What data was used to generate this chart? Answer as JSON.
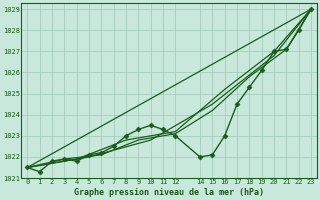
{
  "title": "Graphe pression niveau de la mer (hPa)",
  "background_color": "#c8e8dc",
  "grid_color": "#9ec8b8",
  "line_color": "#1a5c1a",
  "xlim": [
    -0.5,
    23.5
  ],
  "ylim": [
    1021.0,
    1029.3
  ],
  "yticks": [
    1021,
    1022,
    1023,
    1024,
    1025,
    1026,
    1027,
    1028,
    1029
  ],
  "xticks": [
    0,
    1,
    2,
    3,
    4,
    5,
    6,
    7,
    8,
    9,
    10,
    11,
    12,
    14,
    15,
    16,
    17,
    18,
    19,
    20,
    21,
    22,
    23
  ],
  "main_line": {
    "x": [
      0,
      1,
      2,
      3,
      4,
      5,
      6,
      7,
      8,
      9,
      10,
      11,
      12,
      14,
      15,
      16,
      17,
      18,
      19,
      20,
      21,
      22,
      23
    ],
    "y": [
      1021.5,
      1021.3,
      1021.8,
      1021.9,
      1021.8,
      1022.1,
      1022.2,
      1022.5,
      1023.0,
      1023.3,
      1023.5,
      1023.3,
      1023.0,
      1022.0,
      1022.1,
      1023.0,
      1024.5,
      1025.3,
      1026.1,
      1027.0,
      1027.1,
      1028.0,
      1029.0
    ]
  },
  "trend_lines": [
    {
      "x": [
        0,
        23
      ],
      "y": [
        1021.5,
        1029.0
      ]
    },
    {
      "x": [
        0,
        5,
        10,
        15,
        20,
        23
      ],
      "y": [
        1021.5,
        1022.0,
        1022.8,
        1024.5,
        1026.8,
        1029.0
      ]
    },
    {
      "x": [
        0,
        4,
        8,
        12,
        16,
        20,
        23
      ],
      "y": [
        1021.5,
        1021.9,
        1022.8,
        1023.2,
        1025.2,
        1027.0,
        1029.0
      ]
    },
    {
      "x": [
        0,
        3,
        6,
        9,
        12,
        15,
        18,
        21,
        23
      ],
      "y": [
        1021.5,
        1021.9,
        1022.1,
        1022.8,
        1023.1,
        1024.2,
        1025.8,
        1027.1,
        1029.0
      ]
    }
  ]
}
